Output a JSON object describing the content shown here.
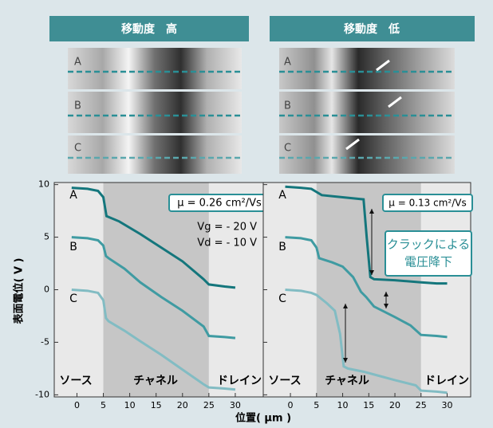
{
  "panels": [
    {
      "header": "移動度　高",
      "strip_labels": [
        "A",
        "B",
        "C"
      ]
    },
    {
      "header": "移動度　低",
      "strip_labels": [
        "A",
        "B",
        "C"
      ]
    }
  ],
  "chart_data": [
    {
      "type": "line",
      "ylabel": "表面電位( V )",
      "xlabel": "位置( μm )",
      "xlim": [
        -4.3,
        35.3
      ],
      "ylim": [
        -10.2,
        10.2
      ],
      "xticks": [
        0,
        5,
        10,
        15,
        20,
        25,
        30
      ],
      "yticks": [
        10,
        5,
        0,
        -5,
        -10
      ],
      "channel": [
        5,
        25
      ],
      "region_labels": [
        "ソース",
        "チャネル",
        "ドレイン"
      ],
      "series": [
        {
          "name": "A",
          "color": "#14767c",
          "x": [
            -1,
            2,
            4,
            5,
            5.6,
            8,
            12,
            16,
            20,
            24,
            25,
            28,
            30
          ],
          "values": [
            9.7,
            9.6,
            9.4,
            8.8,
            7,
            6.5,
            5.3,
            4,
            2.7,
            1,
            0.5,
            0.3,
            0.2
          ]
        },
        {
          "name": "B",
          "color": "#3f9ba2",
          "x": [
            -1,
            2,
            4,
            5,
            5.5,
            6,
            9,
            12,
            16,
            20,
            24,
            25,
            28,
            30
          ],
          "values": [
            5,
            4.9,
            4.7,
            4.2,
            3.2,
            3,
            2,
            0.7,
            -0.7,
            -2,
            -3.5,
            -4.4,
            -4.5,
            -4.6
          ]
        },
        {
          "name": "C",
          "color": "#82bcc3",
          "x": [
            -1,
            2,
            4,
            5,
            5.5,
            6,
            9,
            12,
            16,
            20,
            24,
            25,
            28,
            30
          ],
          "values": [
            0,
            -0.1,
            -0.3,
            -1,
            -2.7,
            -3,
            -3.9,
            -4.9,
            -6.2,
            -7.6,
            -9,
            -9.3,
            -9.4,
            -9.5
          ]
        }
      ],
      "annotations": [
        "μ = 0.26 cm²/Vs",
        "Vg = - 20 V",
        "Vd = - 10 V"
      ]
    },
    {
      "type": "line",
      "xlim": [
        -5.2,
        34.5
      ],
      "ylim": [
        -10.2,
        10.2
      ],
      "xticks": [
        0,
        5,
        10,
        15,
        20,
        25,
        30
      ],
      "yticks": [
        10,
        5,
        0,
        -5,
        -10
      ],
      "channel": [
        5,
        25
      ],
      "region_labels": [
        "ソース",
        "チャネル",
        "ドレイン"
      ],
      "series": [
        {
          "name": "A",
          "color": "#14767c",
          "x": [
            -1,
            2,
            4,
            5,
            6,
            10,
            14,
            14.6,
            15.3,
            16,
            20,
            25,
            28,
            30
          ],
          "values": [
            9.8,
            9.7,
            9.6,
            9.3,
            9,
            8.8,
            8.6,
            5,
            1.2,
            1,
            0.9,
            0.7,
            0.6,
            0.6
          ]
        },
        {
          "name": "B",
          "color": "#3f9ba2",
          "x": [
            -1,
            2,
            4,
            5,
            5.5,
            8,
            10,
            12,
            13.5,
            14.5,
            16,
            18,
            20,
            23,
            25,
            28,
            30
          ],
          "values": [
            5,
            4.9,
            4.7,
            4,
            3,
            2.6,
            2.2,
            1.2,
            -0.2,
            -0.7,
            -1.6,
            -2.1,
            -2.6,
            -3.4,
            -4.3,
            -4.4,
            -4.5
          ]
        },
        {
          "name": "C",
          "color": "#82bcc3",
          "x": [
            -1,
            2,
            4,
            5,
            7,
            8.5,
            9.5,
            10.2,
            11,
            14,
            17,
            20,
            24,
            25,
            28,
            30
          ],
          "values": [
            0,
            -0.1,
            -0.3,
            -0.5,
            -1.3,
            -2,
            -4.2,
            -7.3,
            -7.5,
            -7.8,
            -8.2,
            -8.6,
            -9.1,
            -9.6,
            -9.7,
            -9.8
          ]
        }
      ],
      "annotations": [
        "μ = 0.13 cm²/Vs",
        "クラックによる",
        "電圧降下"
      ]
    }
  ]
}
